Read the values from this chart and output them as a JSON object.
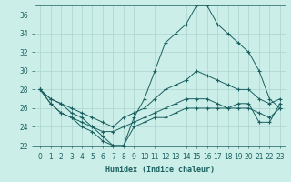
{
  "title": "",
  "xlabel": "Humidex (Indice chaleur)",
  "background_color": "#cceee8",
  "grid_color": "#aad4ce",
  "line_color": "#1a6060",
  "x": [
    0,
    1,
    2,
    3,
    4,
    5,
    6,
    7,
    8,
    9,
    10,
    11,
    12,
    13,
    14,
    15,
    16,
    17,
    18,
    19,
    20,
    21,
    22,
    23
  ],
  "line_max": [
    28,
    27,
    26.5,
    25.5,
    25,
    24,
    23,
    22,
    22,
    25,
    27,
    30,
    33,
    34,
    35,
    37,
    37,
    35,
    34,
    33,
    32,
    30,
    27,
    26
  ],
  "line_upper": [
    28,
    27,
    26.5,
    26,
    25.5,
    25,
    24.5,
    24,
    25,
    25.5,
    26,
    27,
    28,
    28.5,
    29,
    30,
    29.5,
    29,
    28.5,
    28,
    28,
    27,
    26.5,
    27
  ],
  "line_lower": [
    28,
    26.5,
    25.5,
    25,
    24.5,
    24,
    23.5,
    23.5,
    24,
    24.5,
    25,
    25.5,
    26,
    26.5,
    27,
    27,
    27,
    26.5,
    26,
    26,
    26,
    25.5,
    25,
    26
  ],
  "line_min": [
    28,
    26.5,
    25.5,
    25,
    24,
    23.5,
    22.5,
    22,
    22,
    24,
    24.5,
    25,
    25,
    25.5,
    26,
    26,
    26,
    26,
    26,
    26.5,
    26.5,
    24.5,
    24.5,
    26.5
  ],
  "ylim": [
    22,
    37
  ],
  "yticks": [
    22,
    24,
    26,
    28,
    30,
    32,
    34,
    36
  ],
  "xticks": [
    0,
    1,
    2,
    3,
    4,
    5,
    6,
    7,
    8,
    9,
    10,
    11,
    12,
    13,
    14,
    15,
    16,
    17,
    18,
    19,
    20,
    21,
    22,
    23
  ],
  "xlabel_fontsize": 6.0,
  "tick_fontsize": 5.5
}
